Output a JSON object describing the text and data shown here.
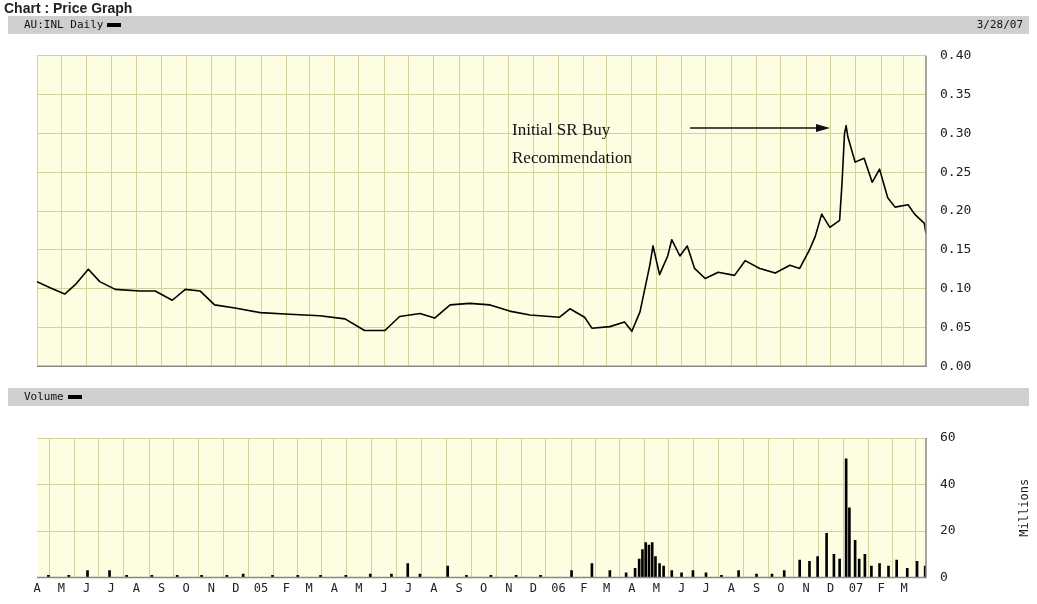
{
  "chart_data": [
    {
      "type": "line",
      "title": "Chart : Price Graph",
      "series": [
        {
          "name": "AU:INL Daily",
          "color": "#000000",
          "x": [
            "2004-04-01",
            "2004-04-17",
            "2004-05-05",
            "2004-05-18",
            "2004-06-03",
            "2004-06-17",
            "2004-07-06",
            "2004-08-05",
            "2004-08-24",
            "2004-09-14",
            "2004-09-30",
            "2004-10-18",
            "2004-11-05",
            "2004-11-30",
            "2004-12-31",
            "2005-02-05",
            "2005-03-14",
            "2005-04-14",
            "2005-05-08",
            "2005-06-02",
            "2005-06-20",
            "2005-07-15",
            "2005-08-02",
            "2005-08-21",
            "2005-09-14",
            "2005-10-09",
            "2005-11-02",
            "2005-11-27",
            "2006-01-02",
            "2006-01-15",
            "2006-02-02",
            "2006-02-11",
            "2006-03-05",
            "2006-03-23",
            "2006-04-01",
            "2006-04-11",
            "2006-04-17",
            "2006-04-23",
            "2006-04-27",
            "2006-05-05",
            "2006-05-15",
            "2006-05-20",
            "2006-05-30",
            "2006-06-08",
            "2006-06-17",
            "2006-06-30",
            "2006-07-16",
            "2006-08-05",
            "2006-08-18",
            "2006-09-05",
            "2006-09-24",
            "2006-10-12",
            "2006-10-24",
            "2006-11-05",
            "2006-11-12",
            "2006-11-20",
            "2006-11-30",
            "2006-12-12",
            "2006-12-15",
            "2006-12-18",
            "2006-12-20",
            "2006-12-22",
            "2006-12-31",
            "2007-01-11",
            "2007-01-21",
            "2007-01-30",
            "2007-02-09",
            "2007-02-18",
            "2007-03-06",
            "2007-03-14",
            "2007-03-26",
            "2007-03-28"
          ],
          "values": [
            0.109,
            0.101,
            0.093,
            0.105,
            0.125,
            0.109,
            0.099,
            0.097,
            0.097,
            0.085,
            0.099,
            0.097,
            0.079,
            0.075,
            0.069,
            0.067,
            0.065,
            0.061,
            0.046,
            0.046,
            0.064,
            0.068,
            0.062,
            0.079,
            0.081,
            0.079,
            0.071,
            0.066,
            0.063,
            0.074,
            0.063,
            0.049,
            0.051,
            0.057,
            0.045,
            0.07,
            0.1,
            0.13,
            0.155,
            0.118,
            0.142,
            0.163,
            0.142,
            0.155,
            0.126,
            0.113,
            0.121,
            0.117,
            0.136,
            0.126,
            0.12,
            0.13,
            0.126,
            0.15,
            0.167,
            0.196,
            0.179,
            0.188,
            0.237,
            0.3,
            0.31,
            0.296,
            0.263,
            0.268,
            0.237,
            0.254,
            0.217,
            0.205,
            0.208,
            0.196,
            0.184,
            0.171
          ]
        }
      ],
      "xlim": [
        "2004-04-01",
        "2007-03-28"
      ],
      "xticks": [
        {
          "value": "2004-04-01",
          "label": null
        },
        {
          "value": "2004-05-01",
          "label": null
        },
        {
          "value": "2004-06-01",
          "label": null
        },
        {
          "value": "2004-07-01",
          "label": null
        },
        {
          "value": "2004-08-01",
          "label": null
        },
        {
          "value": "2004-09-01",
          "label": null
        },
        {
          "value": "2004-10-01",
          "label": null
        },
        {
          "value": "2004-11-01",
          "label": null
        },
        {
          "value": "2004-12-01",
          "label": null
        },
        {
          "value": "2005-01-01",
          "label": null
        },
        {
          "value": "2005-02-01",
          "label": null
        },
        {
          "value": "2005-03-01",
          "label": null
        },
        {
          "value": "2005-04-01",
          "label": null
        },
        {
          "value": "2005-05-01",
          "label": null
        },
        {
          "value": "2005-06-01",
          "label": null
        },
        {
          "value": "2005-07-01",
          "label": null
        },
        {
          "value": "2005-08-01",
          "label": null
        },
        {
          "value": "2005-09-01",
          "label": null
        },
        {
          "value": "2005-10-01",
          "label": null
        },
        {
          "value": "2005-11-01",
          "label": null
        },
        {
          "value": "2005-12-01",
          "label": null
        },
        {
          "value": "2006-01-01",
          "label": null
        },
        {
          "value": "2006-02-01",
          "label": null
        },
        {
          "value": "2006-03-01",
          "label": null
        },
        {
          "value": "2006-04-01",
          "label": null
        },
        {
          "value": "2006-05-01",
          "label": null
        },
        {
          "value": "2006-06-01",
          "label": null
        },
        {
          "value": "2006-07-01",
          "label": null
        },
        {
          "value": "2006-08-01",
          "label": null
        },
        {
          "value": "2006-09-01",
          "label": null
        },
        {
          "value": "2006-10-01",
          "label": null
        },
        {
          "value": "2006-11-01",
          "label": null
        },
        {
          "value": "2006-12-01",
          "label": null
        },
        {
          "value": "2007-01-01",
          "label": null
        },
        {
          "value": "2007-02-01",
          "label": null
        },
        {
          "value": "2007-03-01",
          "label": null
        }
      ],
      "ylim": [
        0,
        0.4
      ],
      "yticks": [
        {
          "value": 0,
          "label": "0.00"
        },
        {
          "value": 0.05,
          "label": "0.05"
        },
        {
          "value": 0.1,
          "label": "0.10"
        },
        {
          "value": 0.15,
          "label": "0.15"
        },
        {
          "value": 0.2,
          "label": "0.20"
        },
        {
          "value": 0.25,
          "label": "0.25"
        },
        {
          "value": 0.3,
          "label": "0.30"
        },
        {
          "value": 0.35,
          "label": "0.35"
        },
        {
          "value": 0.4,
          "label": "0.40"
        }
      ],
      "tick_labels": "y",
      "grid": true,
      "legend": "top left",
      "marker": "none",
      "annotations": [
        "3/28/07",
        "Initial SR Buy Recommendation"
      ]
    },
    {
      "type": "bar",
      "series": [
        {
          "name": "Volume",
          "color": "#000000",
          "x": [
            "2004-04-15",
            "2004-05-10",
            "2004-06-02",
            "2004-06-29",
            "2004-07-20",
            "2004-08-20",
            "2004-09-20",
            "2004-10-20",
            "2004-11-20",
            "2004-12-10",
            "2005-01-15",
            "2005-02-15",
            "2005-03-15",
            "2005-04-15",
            "2005-05-15",
            "2005-06-10",
            "2005-06-30",
            "2005-07-15",
            "2005-08-18",
            "2005-09-10",
            "2005-10-10",
            "2005-11-10",
            "2005-12-10",
            "2006-01-17",
            "2006-02-11",
            "2006-03-05",
            "2006-03-25",
            "2006-04-05",
            "2006-04-10",
            "2006-04-14",
            "2006-04-18",
            "2006-04-22",
            "2006-04-26",
            "2006-04-30",
            "2006-05-05",
            "2006-05-10",
            "2006-05-20",
            "2006-06-01",
            "2006-06-15",
            "2006-07-01",
            "2006-07-20",
            "2006-08-10",
            "2006-09-01",
            "2006-09-20",
            "2006-10-05",
            "2006-10-24",
            "2006-11-05",
            "2006-11-15",
            "2006-11-26",
            "2006-12-05",
            "2006-12-12",
            "2006-12-20",
            "2006-12-24",
            "2006-12-31",
            "2007-01-05",
            "2007-01-12",
            "2007-01-20",
            "2007-01-30",
            "2007-02-10",
            "2007-02-20",
            "2007-03-05",
            "2007-03-17",
            "2007-03-27"
          ],
          "values": [
            1,
            1,
            3,
            3,
            1,
            1,
            1,
            1,
            1,
            1.5,
            1,
            1,
            1,
            1,
            1.5,
            1.5,
            6,
            1.5,
            5,
            1,
            1,
            1,
            1,
            3,
            6,
            3,
            2,
            4,
            8,
            12,
            15,
            14,
            15,
            9,
            6,
            5,
            3,
            2,
            3,
            2,
            1,
            3,
            1.5,
            1.5,
            3,
            7.5,
            7,
            9,
            19,
            10,
            8,
            51,
            30,
            16,
            8,
            10,
            5,
            6,
            5,
            7.5,
            4,
            7,
            5
          ]
        }
      ],
      "xlim": [
        "2004-04-01",
        "2007-03-28"
      ],
      "xticks": [
        {
          "value": "2004-04-01",
          "label": "A"
        },
        {
          "value": "2004-05-01",
          "label": "M"
        },
        {
          "value": "2004-06-01",
          "label": "J"
        },
        {
          "value": "2004-07-01",
          "label": "J"
        },
        {
          "value": "2004-08-01",
          "label": "A"
        },
        {
          "value": "2004-09-01",
          "label": "S"
        },
        {
          "value": "2004-10-01",
          "label": "O"
        },
        {
          "value": "2004-11-01",
          "label": "N"
        },
        {
          "value": "2004-12-01",
          "label": "D"
        },
        {
          "value": "2005-01-01",
          "label": "05"
        },
        {
          "value": "2005-02-01",
          "label": "F"
        },
        {
          "value": "2005-03-01",
          "label": "M"
        },
        {
          "value": "2005-04-01",
          "label": "A"
        },
        {
          "value": "2005-05-01",
          "label": "M"
        },
        {
          "value": "2005-06-01",
          "label": "J"
        },
        {
          "value": "2005-07-01",
          "label": "J"
        },
        {
          "value": "2005-08-01",
          "label": "A"
        },
        {
          "value": "2005-09-01",
          "label": "S"
        },
        {
          "value": "2005-10-01",
          "label": "O"
        },
        {
          "value": "2005-11-01",
          "label": "N"
        },
        {
          "value": "2005-12-01",
          "label": "D"
        },
        {
          "value": "2006-01-01",
          "label": "06"
        },
        {
          "value": "2006-02-01",
          "label": "F"
        },
        {
          "value": "2006-03-01",
          "label": "M"
        },
        {
          "value": "2006-04-01",
          "label": "A"
        },
        {
          "value": "2006-05-01",
          "label": "M"
        },
        {
          "value": "2006-06-01",
          "label": "J"
        },
        {
          "value": "2006-07-01",
          "label": "J"
        },
        {
          "value": "2006-08-01",
          "label": "A"
        },
        {
          "value": "2006-09-01",
          "label": "S"
        },
        {
          "value": "2006-10-01",
          "label": "O"
        },
        {
          "value": "2006-11-01",
          "label": "N"
        },
        {
          "value": "2006-12-01",
          "label": "D"
        },
        {
          "value": "2007-01-01",
          "label": "07"
        },
        {
          "value": "2007-02-01",
          "label": "F"
        },
        {
          "value": "2007-03-01",
          "label": "M"
        }
      ],
      "ylim": [
        0,
        60
      ],
      "yticks": [
        0,
        20,
        40,
        60
      ],
      "ylabel": "Millions",
      "grid": true,
      "legend": "top left"
    }
  ]
}
